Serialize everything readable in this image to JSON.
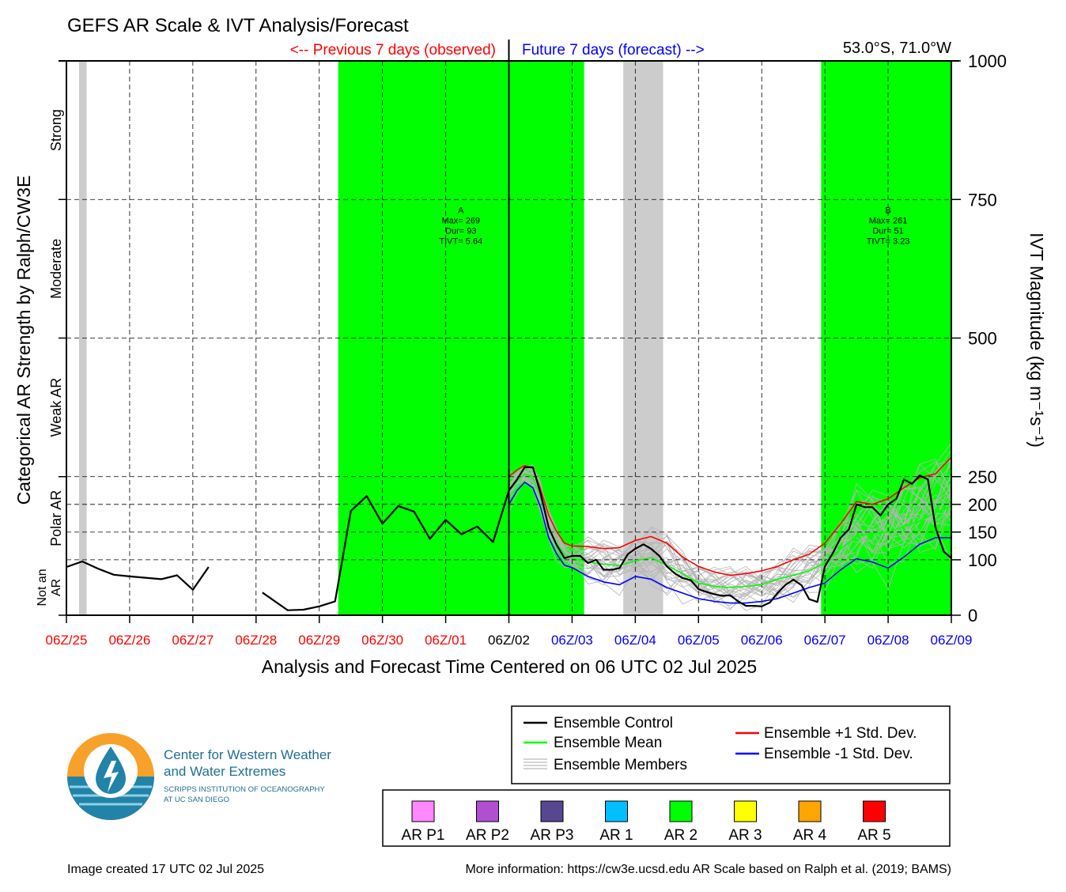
{
  "header": {
    "title": "GEFS AR Scale & IVT Analysis/Forecast",
    "previous_label": "<-- Previous 7 days (observed)",
    "future_label": "Future 7 days (forecast) -->",
    "location": "53.0°S, 71.0°W"
  },
  "chart_data": {
    "type": "line",
    "xlabel": "Analysis and Forecast Time Centered on 06 UTC 02 Jul 2025",
    "ylabel_left": "Categorical AR Strength by Ralph/CW3E",
    "ylabel_right": "IVT Magnitude (kg m⁻¹s⁻¹)",
    "x_range_days": [
      -7,
      7
    ],
    "x_ticks": [
      {
        "day": -7,
        "label": "06Z/25",
        "color": "#ff0000"
      },
      {
        "day": -6,
        "label": "06Z/26",
        "color": "#ff0000"
      },
      {
        "day": -5,
        "label": "06Z/27",
        "color": "#ff0000"
      },
      {
        "day": -4,
        "label": "06Z/28",
        "color": "#ff0000"
      },
      {
        "day": -3,
        "label": "06Z/29",
        "color": "#ff0000"
      },
      {
        "day": -2,
        "label": "06Z/30",
        "color": "#ff0000"
      },
      {
        "day": -1,
        "label": "06Z/01",
        "color": "#ff0000"
      },
      {
        "day": 0,
        "label": "06Z/02",
        "color": "#000000"
      },
      {
        "day": 1,
        "label": "06Z/03",
        "color": "#0000ff"
      },
      {
        "day": 2,
        "label": "06Z/04",
        "color": "#0000ff"
      },
      {
        "day": 3,
        "label": "06Z/05",
        "color": "#0000ff"
      },
      {
        "day": 4,
        "label": "06Z/06",
        "color": "#0000ff"
      },
      {
        "day": 5,
        "label": "06Z/07",
        "color": "#0000ff"
      },
      {
        "day": 6,
        "label": "06Z/08",
        "color": "#0000ff"
      },
      {
        "day": 7,
        "label": "06Z/09",
        "color": "#0000ff"
      }
    ],
    "y_ticks": [
      0,
      100,
      150,
      200,
      250,
      500,
      750,
      1000
    ],
    "y_range": [
      0,
      1000
    ],
    "category_labels": [
      {
        "label": "Not an AR",
        "lines": [
          "Not an",
          "AR"
        ],
        "from": 0,
        "to": 100
      },
      {
        "label": "Polar AR",
        "from": 100,
        "to": 250
      },
      {
        "label": "Weak AR",
        "from": 250,
        "to": 500
      },
      {
        "label": "Moderate",
        "from": 500,
        "to": 750
      },
      {
        "label": "Strong",
        "from": 750,
        "to": 1000
      }
    ],
    "ar_windows": [
      {
        "category": "AR 2",
        "color": "#00ff00",
        "start_day": -2.7,
        "end_day": 1.19
      },
      {
        "category": "AR 2",
        "color": "#00ff00",
        "start_day": 4.94,
        "end_day": 7.0
      }
    ],
    "missing_windows": [
      {
        "color": "#cccccc",
        "start_day": -6.8,
        "end_day": -6.68
      },
      {
        "color": "#cccccc",
        "start_day": 1.81,
        "end_day": 2.44
      }
    ],
    "event_annotations": [
      {
        "lines": [
          "A",
          "Max= 269",
          "Dur= 93",
          "TIVT= 5.64"
        ],
        "day": -0.76,
        "ivt": 740
      },
      {
        "lines": [
          "B",
          "Max= 261",
          "Dur= 51",
          "TIVT= 3.23"
        ],
        "day": 6.0,
        "ivt": 740
      }
    ],
    "series": [
      {
        "name": "Ensemble Control",
        "color": "#000000",
        "segments": [
          [
            [
              -7,
              87
            ],
            [
              -6.75,
              97
            ],
            [
              -6.5,
              84
            ],
            [
              -6.25,
              73
            ],
            [
              -6,
              70
            ],
            [
              -5.5,
              65
            ],
            [
              -5.25,
              72
            ],
            [
              -5,
              46
            ],
            [
              -4.75,
              87
            ]
          ],
          [
            [
              -3.9,
              41
            ],
            [
              -3.5,
              9
            ],
            [
              -3.25,
              10
            ],
            [
              -3,
              16
            ],
            [
              -2.75,
              25
            ],
            [
              -2.5,
              188
            ],
            [
              -2.25,
              215
            ],
            [
              -2,
              165
            ],
            [
              -1.75,
              197
            ],
            [
              -1.5,
              187
            ],
            [
              -1.25,
              138
            ],
            [
              -1,
              172
            ],
            [
              -0.75,
              146
            ],
            [
              -0.5,
              160
            ],
            [
              -0.25,
              132
            ],
            [
              0,
              225
            ],
            [
              0.13,
              245
            ],
            [
              0.25,
              267
            ],
            [
              0.38,
              267
            ],
            [
              0.5,
              220
            ],
            [
              0.63,
              158
            ],
            [
              0.75,
              128
            ],
            [
              0.88,
              103
            ],
            [
              1,
              107
            ],
            [
              1.13,
              107
            ],
            [
              1.25,
              94
            ],
            [
              1.38,
              100
            ],
            [
              1.5,
              82
            ],
            [
              1.63,
              82
            ],
            [
              1.75,
              85
            ],
            [
              1.88,
              110
            ],
            [
              2,
              120
            ],
            [
              2.13,
              128
            ],
            [
              2.25,
              120
            ],
            [
              2.38,
              107
            ],
            [
              2.5,
              88
            ],
            [
              2.63,
              75
            ],
            [
              2.75,
              67
            ],
            [
              2.88,
              63
            ],
            [
              3,
              47
            ],
            [
              3.13,
              42
            ],
            [
              3.25,
              38
            ],
            [
              3.38,
              35
            ],
            [
              3.5,
              36
            ],
            [
              3.63,
              25
            ],
            [
              3.75,
              17
            ],
            [
              3.88,
              17
            ],
            [
              4,
              16
            ],
            [
              4.13,
              23
            ],
            [
              4.25,
              40
            ],
            [
              4.38,
              55
            ],
            [
              4.5,
              64
            ],
            [
              4.63,
              54
            ],
            [
              4.75,
              29
            ],
            [
              4.88,
              24
            ],
            [
              5,
              88
            ],
            [
              5.13,
              113
            ],
            [
              5.25,
              140
            ],
            [
              5.38,
              155
            ],
            [
              5.5,
              200
            ],
            [
              5.63,
              195
            ],
            [
              5.75,
              195
            ],
            [
              5.88,
              180
            ],
            [
              6,
              200
            ],
            [
              6.13,
              210
            ],
            [
              6.25,
              245
            ],
            [
              6.38,
              237
            ],
            [
              6.5,
              252
            ],
            [
              6.63,
              245
            ],
            [
              6.75,
              158
            ],
            [
              6.88,
              115
            ],
            [
              7,
              103
            ]
          ]
        ]
      },
      {
        "name": "Ensemble Mean",
        "color": "#00ff00",
        "points": [
          [
            0,
            225
          ],
          [
            0.13,
            242
          ],
          [
            0.25,
            255
          ],
          [
            0.38,
            248
          ],
          [
            0.5,
            212
          ],
          [
            0.63,
            160
          ],
          [
            0.75,
            130
          ],
          [
            0.88,
            110
          ],
          [
            1,
            103
          ],
          [
            1.25,
            96
          ],
          [
            1.5,
            92
          ],
          [
            1.75,
            90
          ],
          [
            2,
            98
          ],
          [
            2.25,
            104
          ],
          [
            2.5,
            90
          ],
          [
            2.75,
            75
          ],
          [
            3,
            58
          ],
          [
            3.25,
            52
          ],
          [
            3.5,
            50
          ],
          [
            3.75,
            52
          ],
          [
            4,
            55
          ],
          [
            4.25,
            65
          ],
          [
            4.5,
            72
          ],
          [
            4.75,
            80
          ],
          [
            5,
            95
          ],
          [
            5.25,
            120
          ],
          [
            5.5,
            142
          ],
          [
            5.75,
            148
          ],
          [
            6,
            150
          ],
          [
            6.25,
            160
          ],
          [
            6.5,
            170
          ],
          [
            6.75,
            185
          ],
          [
            7,
            197
          ]
        ]
      },
      {
        "name": "Ensemble +1 Std. Dev.",
        "color": "#ff0000",
        "points": [
          [
            0,
            250
          ],
          [
            0.13,
            262
          ],
          [
            0.25,
            270
          ],
          [
            0.38,
            265
          ],
          [
            0.5,
            228
          ],
          [
            0.63,
            180
          ],
          [
            0.75,
            152
          ],
          [
            0.88,
            130
          ],
          [
            1,
            125
          ],
          [
            1.25,
            124
          ],
          [
            1.5,
            120
          ],
          [
            1.75,
            122
          ],
          [
            2,
            135
          ],
          [
            2.25,
            142
          ],
          [
            2.5,
            130
          ],
          [
            2.75,
            105
          ],
          [
            3,
            88
          ],
          [
            3.25,
            78
          ],
          [
            3.5,
            72
          ],
          [
            3.75,
            75
          ],
          [
            4,
            80
          ],
          [
            4.25,
            88
          ],
          [
            4.5,
            100
          ],
          [
            4.75,
            110
          ],
          [
            5,
            130
          ],
          [
            5.25,
            165
          ],
          [
            5.5,
            205
          ],
          [
            5.75,
            200
          ],
          [
            6,
            210
          ],
          [
            6.25,
            230
          ],
          [
            6.5,
            248
          ],
          [
            6.75,
            255
          ],
          [
            7,
            285
          ]
        ]
      },
      {
        "name": "Ensemble -1 Std. Dev.",
        "color": "#0000ff",
        "points": [
          [
            0,
            200
          ],
          [
            0.13,
            225
          ],
          [
            0.25,
            240
          ],
          [
            0.38,
            230
          ],
          [
            0.5,
            195
          ],
          [
            0.63,
            140
          ],
          [
            0.75,
            112
          ],
          [
            0.88,
            90
          ],
          [
            1,
            86
          ],
          [
            1.25,
            70
          ],
          [
            1.5,
            60
          ],
          [
            1.75,
            55
          ],
          [
            2,
            70
          ],
          [
            2.25,
            65
          ],
          [
            2.5,
            50
          ],
          [
            2.75,
            40
          ],
          [
            3,
            30
          ],
          [
            3.25,
            25
          ],
          [
            3.5,
            22
          ],
          [
            3.75,
            22
          ],
          [
            4,
            25
          ],
          [
            4.25,
            30
          ],
          [
            4.5,
            40
          ],
          [
            4.75,
            50
          ],
          [
            5,
            58
          ],
          [
            5.25,
            82
          ],
          [
            5.5,
            102
          ],
          [
            5.75,
            96
          ],
          [
            6,
            85
          ],
          [
            6.25,
            105
          ],
          [
            6.5,
            128
          ],
          [
            6.75,
            140
          ],
          [
            7,
            140
          ]
        ]
      }
    ],
    "legend": [
      {
        "label": "Ensemble Control",
        "color": "#000000"
      },
      {
        "label": "Ensemble Mean",
        "color": "#00ff00"
      },
      {
        "label": "Ensemble Members",
        "color": "#aaaaaa"
      },
      {
        "label": "Ensemble +1 Std. Dev.",
        "color": "#ff0000"
      },
      {
        "label": "Ensemble -1 Std. Dev.",
        "color": "#0000ff"
      }
    ],
    "color_scale": [
      {
        "label": "AR P1",
        "color": "#ff88ff"
      },
      {
        "label": "AR P2",
        "color": "#b050d0"
      },
      {
        "label": "AR P3",
        "color": "#564790"
      },
      {
        "label": "AR 1",
        "color": "#00bfff"
      },
      {
        "label": "AR 2",
        "color": "#00ff00"
      },
      {
        "label": "AR 3",
        "color": "#ffff00"
      },
      {
        "label": "AR 4",
        "color": "#ffa500"
      },
      {
        "label": "AR 5",
        "color": "#ff0000"
      }
    ]
  },
  "logo": {
    "line1": "Center for Western Weather",
    "line2": "and Water Extremes",
    "line3": "SCRIPPS INSTITUTION OF OCEANOGRAPHY",
    "line4": "AT UC SAN DIEGO"
  },
  "footer": {
    "created": "Image created 17 UTC 02 Jul 2025",
    "info": "More information: https://cw3e.ucsd.edu AR Scale based on Ralph et al. (2019; BAMS)"
  }
}
